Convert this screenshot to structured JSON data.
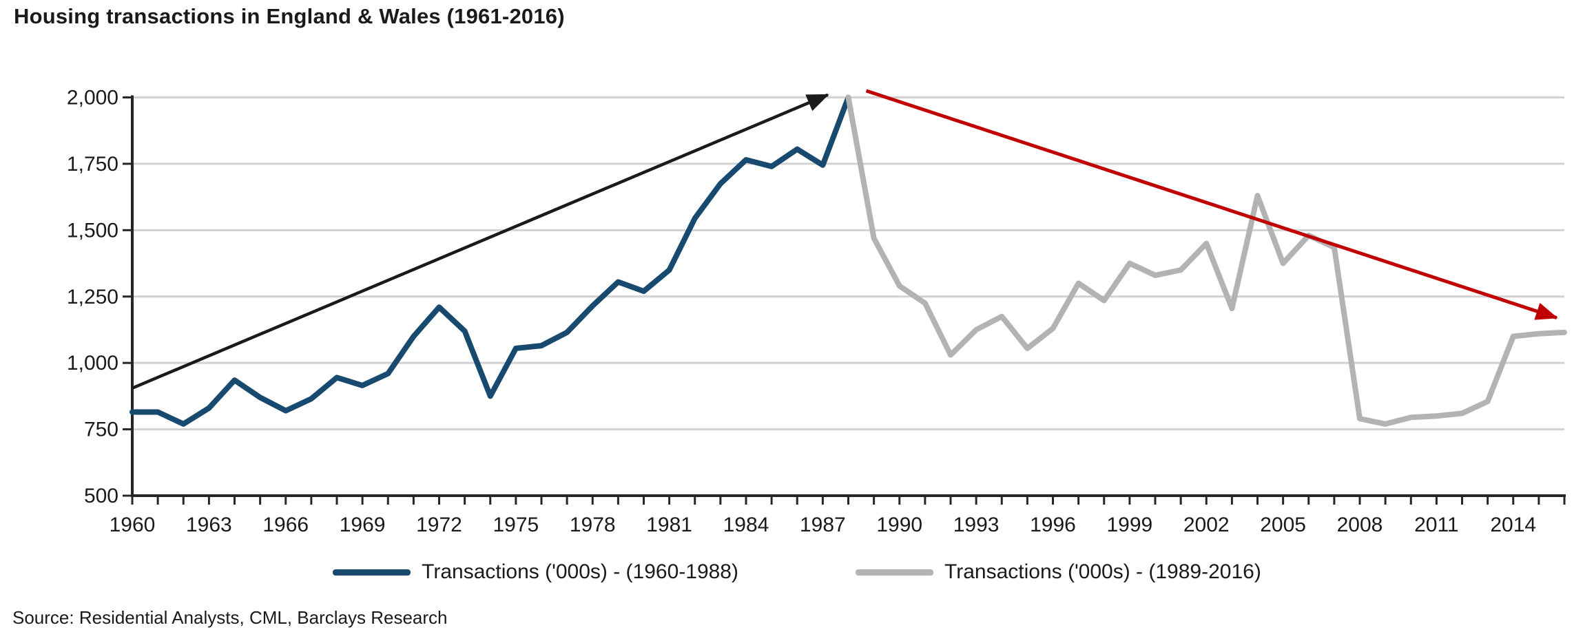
{
  "title": "Housing transactions in England & Wales (1961-2016)",
  "source": "Source: Residential Analysts, CML, Barclays Research",
  "colors": {
    "background": "#ffffff",
    "text": "#1a1a1a",
    "axis": "#262626",
    "grid": "#d2d2d2",
    "series_early": "#174a6e",
    "series_late": "#b3b3b3",
    "trend_up": "#1a1a1a",
    "trend_down": "#c00000"
  },
  "chart_data": {
    "type": "line",
    "title": "Housing transactions in England & Wales (1961-2016)",
    "xlabel": "",
    "ylabel": "",
    "xlim": [
      1960,
      2016
    ],
    "ylim": [
      500,
      2000
    ],
    "grid": "horizontal",
    "legend_position": "bottom",
    "yticks": [
      {
        "value": 500,
        "label": "500"
      },
      {
        "value": 750,
        "label": "750"
      },
      {
        "value": 1000,
        "label": "1,000"
      },
      {
        "value": 1250,
        "label": "1,250"
      },
      {
        "value": 1500,
        "label": "1,500"
      },
      {
        "value": 1750,
        "label": "1,750"
      },
      {
        "value": 2000,
        "label": "2,000"
      }
    ],
    "xtick_label_years": [
      1960,
      1963,
      1966,
      1969,
      1972,
      1975,
      1978,
      1981,
      1984,
      1987,
      1990,
      1993,
      1996,
      1999,
      2002,
      2005,
      2008,
      2011,
      2014
    ],
    "xtick_minor_every_year": true,
    "series": [
      {
        "name": "Transactions ('000s) - (1960-1988)",
        "color": "#174a6e",
        "width": 8,
        "years": [
          1960,
          1961,
          1962,
          1963,
          1964,
          1965,
          1966,
          1967,
          1968,
          1969,
          1970,
          1971,
          1972,
          1973,
          1974,
          1975,
          1976,
          1977,
          1978,
          1979,
          1980,
          1981,
          1982,
          1983,
          1984,
          1985,
          1986,
          1987,
          1988
        ],
        "values": [
          815,
          815,
          770,
          830,
          935,
          870,
          820,
          865,
          945,
          915,
          960,
          1100,
          1210,
          1120,
          875,
          1055,
          1065,
          1115,
          1215,
          1305,
          1270,
          1350,
          1545,
          1675,
          1765,
          1740,
          1805,
          1745,
          2000
        ]
      },
      {
        "name": "Transactions ('000s) - (1989-2016)",
        "color": "#b3b3b3",
        "width": 8,
        "years": [
          1988,
          1989,
          1990,
          1991,
          1992,
          1993,
          1994,
          1995,
          1996,
          1997,
          1998,
          1999,
          2000,
          2001,
          2002,
          2003,
          2004,
          2005,
          2006,
          2007,
          2008,
          2009,
          2010,
          2011,
          2012,
          2013,
          2014,
          2015,
          2016
        ],
        "values": [
          2000,
          1470,
          1290,
          1225,
          1030,
          1125,
          1175,
          1055,
          1130,
          1300,
          1235,
          1375,
          1330,
          1350,
          1450,
          1205,
          1630,
          1375,
          1480,
          1435,
          790,
          770,
          795,
          800,
          810,
          855,
          1100,
          1110,
          1115
        ]
      }
    ],
    "trend_arrows": [
      {
        "name": "uptrend-arrow",
        "color": "#1a1a1a",
        "width": 4.5,
        "from": {
          "year": 1960.0,
          "value": 905
        },
        "to": {
          "year": 1987.2,
          "value": 2010
        }
      },
      {
        "name": "downtrend-arrow",
        "color": "#c00000",
        "width": 5,
        "from": {
          "year": 1988.7,
          "value": 2025
        },
        "to": {
          "year": 2015.7,
          "value": 1170
        }
      }
    ]
  }
}
